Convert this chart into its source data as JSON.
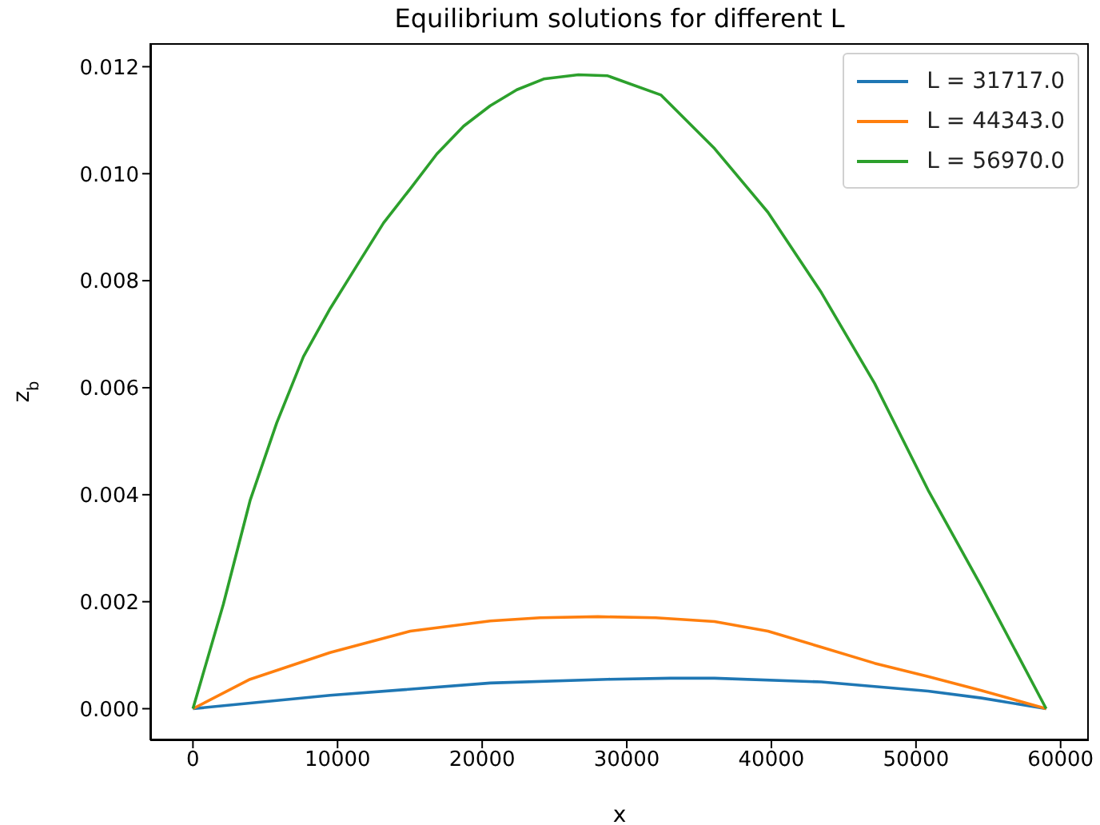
{
  "chart_data": {
    "type": "line",
    "title": "Equilibrium solutions for different L",
    "xlabel": "x",
    "ylabel": "z$_{b}$",
    "xlim": [
      -2950,
      61950
    ],
    "xticks": [
      0,
      10000,
      20000,
      30000,
      40000,
      50000,
      60000
    ],
    "ylim": [
      -0.00059,
      0.01244
    ],
    "yticks": [
      {
        "value": 0,
        "label": "0.000"
      },
      {
        "value": 0.002,
        "label": "0.002"
      },
      {
        "value": 0.004,
        "label": "0.004"
      },
      {
        "value": 0.006,
        "label": "0.006"
      },
      {
        "value": 0.008,
        "label": "0.008"
      },
      {
        "value": 0.01,
        "label": "0.010"
      },
      {
        "value": 0.012,
        "label": "0.012"
      }
    ],
    "grid": false,
    "legend": "top right",
    "marker": "none",
    "line_style": "solid",
    "series": [
      {
        "name": "L = 31717.0",
        "color": "#1f77b4",
        "x": [
          0,
          9490,
          20560,
          28680,
          33000,
          36070,
          43450,
          50830,
          54520,
          59000
        ],
        "values": [
          0,
          0.00025,
          0.00048,
          0.00055,
          0.00057,
          0.00057,
          0.0005,
          0.00033,
          0.0002,
          0
        ]
      },
      {
        "name": "L = 44343.0",
        "color": "#ff7f0e",
        "x": [
          0,
          3950,
          9490,
          15030,
          20560,
          24000,
          28000,
          32000,
          36070,
          39760,
          43450,
          47140,
          50830,
          54520,
          59000
        ],
        "values": [
          0,
          0.00055,
          0.00105,
          0.00145,
          0.00164,
          0.0017,
          0.00172,
          0.0017,
          0.00163,
          0.00145,
          0.00115,
          0.00085,
          0.0006,
          0.00034,
          0
        ]
      },
      {
        "name": "L = 56970.0",
        "color": "#2ca02c",
        "x": [
          0,
          2100,
          3950,
          5790,
          7640,
          9490,
          11330,
          13180,
          15030,
          16870,
          18720,
          20560,
          22400,
          24250,
          26650,
          28680,
          32370,
          36070,
          39760,
          43450,
          47140,
          50830,
          54520,
          59000
        ],
        "values": [
          0,
          0.00195,
          0.00389,
          0.00534,
          0.00658,
          0.00748,
          0.00828,
          0.00908,
          0.00972,
          0.01037,
          0.01089,
          0.01127,
          0.01157,
          0.01177,
          0.01185,
          0.01183,
          0.01147,
          0.01047,
          0.00928,
          0.00778,
          0.00608,
          0.00409,
          0.00229,
          0
        ]
      }
    ]
  }
}
